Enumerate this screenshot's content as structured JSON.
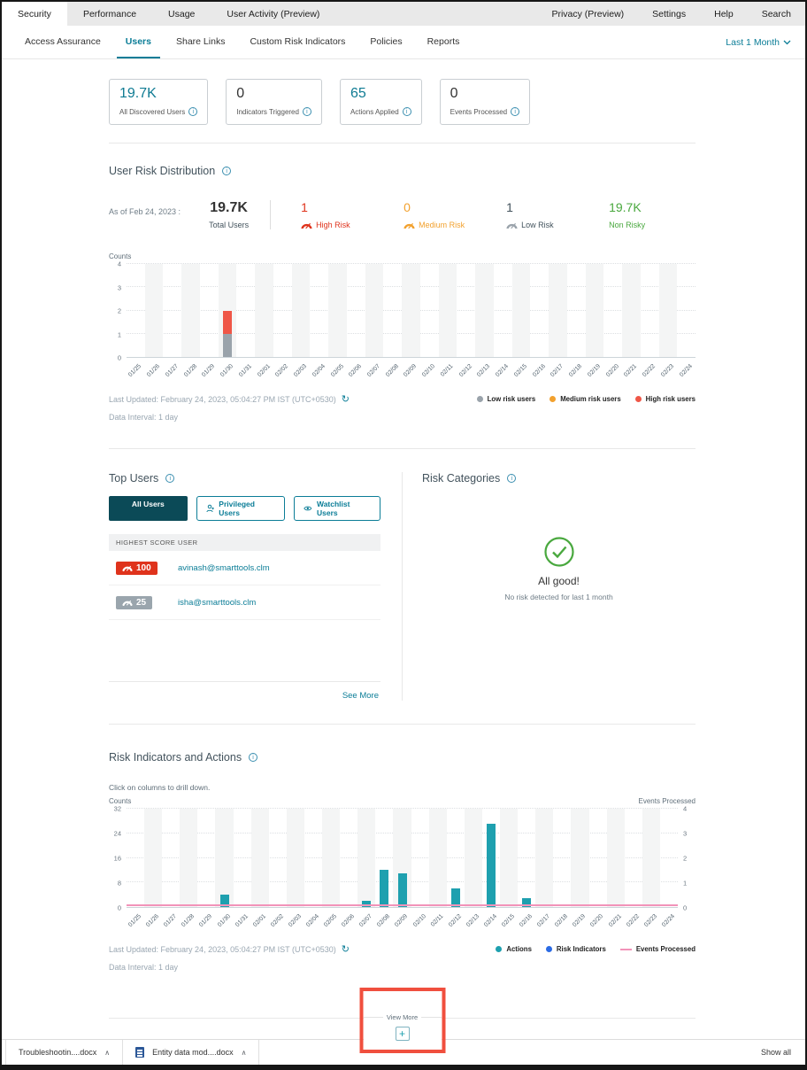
{
  "topnav": {
    "tabs": [
      "Security",
      "Performance",
      "Usage",
      "User Activity (Preview)"
    ],
    "active_tab": "Security",
    "right_items": [
      "Privacy (Preview)",
      "Settings",
      "Help",
      "Search"
    ]
  },
  "subnav": {
    "items": [
      "Access Assurance",
      "Users",
      "Share Links",
      "Custom Risk Indicators",
      "Policies",
      "Reports"
    ],
    "active": "Users",
    "time_filter": "Last 1 Month"
  },
  "stats": [
    {
      "value": "19.7K",
      "label": "All Discovered Users",
      "accent": true
    },
    {
      "value": "0",
      "label": "Indicators Triggered",
      "accent": false
    },
    {
      "value": "65",
      "label": "Actions Applied",
      "accent": true
    },
    {
      "value": "0",
      "label": "Events Processed",
      "accent": false
    }
  ],
  "risk_distribution": {
    "title": "User Risk Distribution",
    "as_of": "As of Feb 24, 2023 :",
    "total_value": "19.7K",
    "total_label": "Total Users",
    "categories": [
      {
        "value": "1",
        "label": "High Risk",
        "color": "#df331c",
        "icon": "gauge-icon"
      },
      {
        "value": "0",
        "label": "Medium Risk",
        "color": "#f2a12e",
        "icon": "gauge-icon"
      },
      {
        "value": "1",
        "label": "Low Risk",
        "color": "#42525c",
        "icon_color": "#9aa3ab",
        "icon": "gauge-icon"
      },
      {
        "value": "19.7K",
        "label": "Non Risky",
        "color": "#49a83e"
      }
    ],
    "last_updated": "Last Updated: February 24, 2023, 05:04:27 PM IST (UTC+0530)",
    "data_interval": "Data Interval: 1 day",
    "legend": [
      {
        "label": "Low risk users",
        "color": "#9aa3ab",
        "shape": "dot"
      },
      {
        "label": "Medium risk users",
        "color": "#f2a12e",
        "shape": "dot"
      },
      {
        "label": "High risk users",
        "color": "#ef5647",
        "shape": "dot"
      }
    ]
  },
  "chart_data": [
    {
      "type": "bar",
      "stacked": true,
      "title": "User Risk Distribution",
      "ylabel": "Counts",
      "ylim": [
        0,
        4
      ],
      "yticks": [
        0,
        1,
        2,
        3,
        4
      ],
      "grid": "dotted-horizontal",
      "categories": [
        "01/25",
        "01/26",
        "01/27",
        "01/28",
        "01/29",
        "01/30",
        "01/31",
        "02/01",
        "02/02",
        "02/03",
        "02/04",
        "02/05",
        "02/06",
        "02/07",
        "02/08",
        "02/09",
        "02/10",
        "02/11",
        "02/12",
        "02/13",
        "02/14",
        "02/15",
        "02/16",
        "02/17",
        "02/18",
        "02/19",
        "02/20",
        "02/21",
        "02/22",
        "02/23",
        "02/24"
      ],
      "series": [
        {
          "name": "Low risk users",
          "color": "#9aa3ab",
          "values": [
            0,
            0,
            0,
            0,
            0,
            1,
            0,
            0,
            0,
            0,
            0,
            0,
            0,
            0,
            0,
            0,
            0,
            0,
            0,
            0,
            0,
            0,
            0,
            0,
            0,
            0,
            0,
            0,
            0,
            0,
            0
          ]
        },
        {
          "name": "Medium risk users",
          "color": "#f2a12e",
          "values": [
            0,
            0,
            0,
            0,
            0,
            0,
            0,
            0,
            0,
            0,
            0,
            0,
            0,
            0,
            0,
            0,
            0,
            0,
            0,
            0,
            0,
            0,
            0,
            0,
            0,
            0,
            0,
            0,
            0,
            0,
            0
          ]
        },
        {
          "name": "High risk users",
          "color": "#ef5647",
          "values": [
            0,
            0,
            0,
            0,
            0,
            1,
            0,
            0,
            0,
            0,
            0,
            0,
            0,
            0,
            0,
            0,
            0,
            0,
            0,
            0,
            0,
            0,
            0,
            0,
            0,
            0,
            0,
            0,
            0,
            0,
            0
          ]
        }
      ]
    },
    {
      "type": "bar",
      "title": "Risk Indicators and Actions",
      "ylabel_left": "Counts",
      "ylabel_right": "Events Processed",
      "ylim_left": [
        0,
        32
      ],
      "yticks_left": [
        0,
        8,
        16,
        24,
        32
      ],
      "ylim_right": [
        0,
        4
      ],
      "yticks_right": [
        0,
        1,
        2,
        3,
        4
      ],
      "grid": "dotted-horizontal",
      "categories": [
        "01/25",
        "01/26",
        "01/27",
        "01/28",
        "01/29",
        "01/30",
        "01/31",
        "02/01",
        "02/02",
        "02/03",
        "02/04",
        "02/05",
        "02/06",
        "02/07",
        "02/08",
        "02/09",
        "02/10",
        "02/11",
        "02/12",
        "02/13",
        "02/14",
        "02/15",
        "02/16",
        "02/17",
        "02/18",
        "02/19",
        "02/20",
        "02/21",
        "02/22",
        "02/23",
        "02/24"
      ],
      "series": [
        {
          "name": "Actions",
          "kind": "bar",
          "color": "#1ea0af",
          "values": [
            0,
            0,
            0,
            0,
            0,
            4,
            0,
            0,
            0,
            0,
            0,
            0,
            0,
            2,
            12,
            11,
            0,
            0,
            6,
            0,
            27,
            0,
            3,
            0,
            0,
            0,
            0,
            0,
            0,
            0,
            0
          ]
        },
        {
          "name": "Risk Indicators",
          "kind": "bar",
          "color": "#2b6be4",
          "values": [
            0,
            0,
            0,
            0,
            0,
            0,
            0,
            0,
            0,
            0,
            0,
            0,
            0,
            0,
            0,
            0,
            0,
            0,
            0,
            0,
            0,
            0,
            0,
            0,
            0,
            0,
            0,
            0,
            0,
            0,
            0
          ]
        },
        {
          "name": "Events Processed",
          "kind": "line",
          "axis": "right",
          "color": "#f293b9",
          "values": [
            0,
            0,
            0,
            0,
            0,
            0,
            0,
            0,
            0,
            0,
            0,
            0,
            0,
            0,
            0,
            0,
            0,
            0,
            0,
            0,
            0,
            0,
            0,
            0,
            0,
            0,
            0,
            0,
            0,
            0,
            0
          ]
        }
      ]
    }
  ],
  "top_users": {
    "title": "Top Users",
    "tabs": [
      {
        "label": "All Users",
        "active": true
      },
      {
        "label": "Privileged Users",
        "icon": "privileged-user-icon"
      },
      {
        "label": "Watchlist Users",
        "icon": "watchlist-eye-icon"
      }
    ],
    "columns": [
      "HIGHEST SCORE",
      "USER"
    ],
    "rows": [
      {
        "score": "100",
        "score_color": "#df331c",
        "user": "avinash@smarttools.clm"
      },
      {
        "score": "25",
        "score_color": "#9aa5ad",
        "user": "isha@smarttools.clm"
      }
    ],
    "see_more": "See More"
  },
  "risk_categories": {
    "title": "Risk Categories",
    "status": "All good!",
    "subtext": "No risk detected for last 1 month",
    "check_color": "#49a83e"
  },
  "risk_indicators": {
    "title": "Risk Indicators and Actions",
    "hint": "Click on columns to drill down.",
    "last_updated": "Last Updated: February 24, 2023, 05:04:27 PM IST (UTC+0530)",
    "data_interval": "Data Interval: 1 day",
    "legend": [
      {
        "label": "Actions",
        "color": "#1ea0af",
        "shape": "dot"
      },
      {
        "label": "Risk Indicators",
        "color": "#2b6be4",
        "shape": "dot"
      },
      {
        "label": "Events Processed",
        "color": "#f293b9",
        "shape": "line"
      }
    ]
  },
  "view_more": {
    "label": "View More",
    "annotation_color": "#f04f3e"
  },
  "downloads": {
    "items": [
      {
        "label": "Troubleshootin....docx",
        "icon": false
      },
      {
        "label": "Entity data mod....docx",
        "icon": true
      }
    ],
    "show_all": "Show all"
  }
}
